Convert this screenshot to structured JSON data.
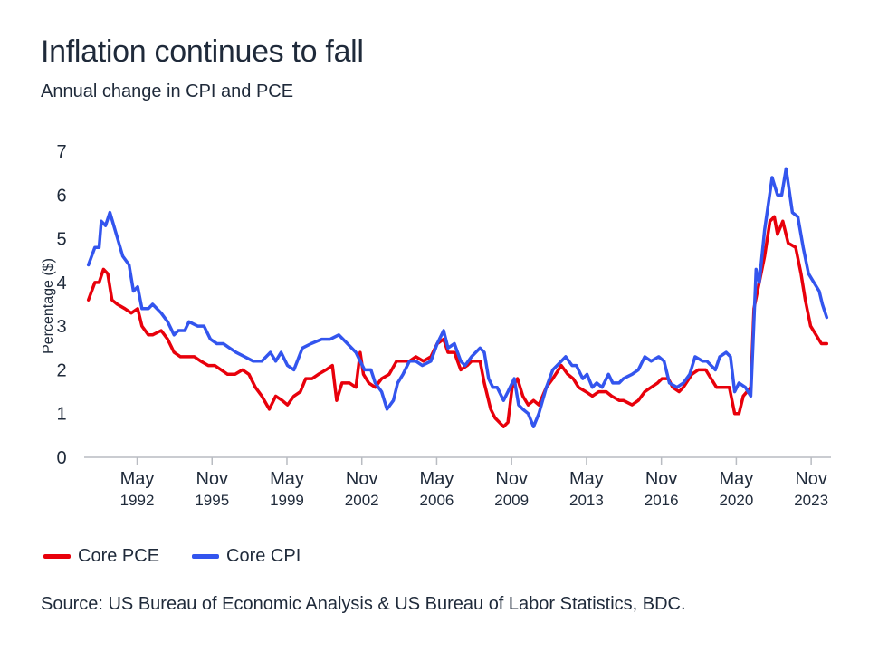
{
  "title": "Inflation continues to fall",
  "subtitle": "Annual change in CPI and PCE",
  "source": "Source: US Bureau of Economic Analysis & US Bureau of Labor Statistics, BDC.",
  "chart_data": {
    "type": "line",
    "title": "Inflation continues to fall",
    "subtitle": "Annual change in CPI and PCE",
    "xlabel": "",
    "ylabel": "Percentage ($)",
    "ylim": [
      0,
      7
    ],
    "xlim": [
      1989.9,
      2024.8
    ],
    "grid": false,
    "legend_position": "bottom-left",
    "yticks": [
      "0",
      "1",
      "2",
      "3",
      "4",
      "5",
      "6",
      "7"
    ],
    "xticks": [
      {
        "x": 1992.375,
        "month": "May",
        "year": "1992"
      },
      {
        "x": 1995.875,
        "month": "Nov",
        "year": "1995"
      },
      {
        "x": 1999.375,
        "month": "May",
        "year": "1999"
      },
      {
        "x": 2002.875,
        "month": "Nov",
        "year": "2002"
      },
      {
        "x": 2006.375,
        "month": "May",
        "year": "2006"
      },
      {
        "x": 2009.875,
        "month": "Nov",
        "year": "2009"
      },
      {
        "x": 2013.375,
        "month": "May",
        "year": "2013"
      },
      {
        "x": 2016.875,
        "month": "Nov",
        "year": "2016"
      },
      {
        "x": 2020.375,
        "month": "May",
        "year": "2020"
      },
      {
        "x": 2023.875,
        "month": "Nov",
        "year": "2023"
      }
    ],
    "series": [
      {
        "name": "Core PCE",
        "color": "#e8000b",
        "points": [
          [
            1990.1,
            3.6
          ],
          [
            1990.4,
            4.0
          ],
          [
            1990.6,
            4.0
          ],
          [
            1990.8,
            4.3
          ],
          [
            1991.0,
            4.2
          ],
          [
            1991.2,
            3.6
          ],
          [
            1991.45,
            3.5
          ],
          [
            1991.8,
            3.4
          ],
          [
            1992.1,
            3.3
          ],
          [
            1992.4,
            3.4
          ],
          [
            1992.6,
            3.0
          ],
          [
            1992.9,
            2.8
          ],
          [
            1993.1,
            2.8
          ],
          [
            1993.5,
            2.9
          ],
          [
            1993.8,
            2.7
          ],
          [
            1994.1,
            2.4
          ],
          [
            1994.4,
            2.3
          ],
          [
            1994.75,
            2.3
          ],
          [
            1995.05,
            2.3
          ],
          [
            1995.35,
            2.2
          ],
          [
            1995.7,
            2.1
          ],
          [
            1996.0,
            2.1
          ],
          [
            1996.3,
            2.0
          ],
          [
            1996.6,
            1.9
          ],
          [
            1996.95,
            1.9
          ],
          [
            1997.3,
            2.0
          ],
          [
            1997.6,
            1.9
          ],
          [
            1997.9,
            1.6
          ],
          [
            1998.2,
            1.4
          ],
          [
            1998.55,
            1.1
          ],
          [
            1998.85,
            1.4
          ],
          [
            1999.15,
            1.3
          ],
          [
            1999.4,
            1.2
          ],
          [
            1999.7,
            1.4
          ],
          [
            2000.0,
            1.5
          ],
          [
            2000.25,
            1.8
          ],
          [
            2000.55,
            1.8
          ],
          [
            2000.85,
            1.9
          ],
          [
            2001.2,
            2.0
          ],
          [
            2001.5,
            2.1
          ],
          [
            2001.7,
            1.3
          ],
          [
            2001.95,
            1.7
          ],
          [
            2002.3,
            1.7
          ],
          [
            2002.6,
            1.6
          ],
          [
            2002.8,
            2.4
          ],
          [
            2002.95,
            1.9
          ],
          [
            2003.2,
            1.7
          ],
          [
            2003.5,
            1.6
          ],
          [
            2003.8,
            1.8
          ],
          [
            2004.15,
            1.9
          ],
          [
            2004.5,
            2.2
          ],
          [
            2004.8,
            2.2
          ],
          [
            2005.1,
            2.2
          ],
          [
            2005.4,
            2.3
          ],
          [
            2005.75,
            2.2
          ],
          [
            2006.1,
            2.3
          ],
          [
            2006.4,
            2.6
          ],
          [
            2006.7,
            2.7
          ],
          [
            2006.9,
            2.4
          ],
          [
            2007.2,
            2.4
          ],
          [
            2007.5,
            2.0
          ],
          [
            2007.8,
            2.1
          ],
          [
            2008.0,
            2.2
          ],
          [
            2008.4,
            2.2
          ],
          [
            2008.6,
            1.7
          ],
          [
            2008.9,
            1.1
          ],
          [
            2009.1,
            0.9
          ],
          [
            2009.5,
            0.7
          ],
          [
            2009.7,
            0.8
          ],
          [
            2009.9,
            1.6
          ],
          [
            2010.15,
            1.8
          ],
          [
            2010.4,
            1.4
          ],
          [
            2010.65,
            1.2
          ],
          [
            2010.9,
            1.3
          ],
          [
            2011.15,
            1.2
          ],
          [
            2011.5,
            1.6
          ],
          [
            2011.8,
            1.8
          ],
          [
            2012.2,
            2.1
          ],
          [
            2012.5,
            1.9
          ],
          [
            2012.75,
            1.8
          ],
          [
            2013.0,
            1.6
          ],
          [
            2013.35,
            1.5
          ],
          [
            2013.65,
            1.4
          ],
          [
            2013.95,
            1.5
          ],
          [
            2014.3,
            1.5
          ],
          [
            2014.55,
            1.4
          ],
          [
            2014.9,
            1.3
          ],
          [
            2015.1,
            1.3
          ],
          [
            2015.5,
            1.2
          ],
          [
            2015.8,
            1.3
          ],
          [
            2016.1,
            1.5
          ],
          [
            2016.4,
            1.6
          ],
          [
            2016.7,
            1.7
          ],
          [
            2016.9,
            1.8
          ],
          [
            2017.2,
            1.8
          ],
          [
            2017.4,
            1.6
          ],
          [
            2017.7,
            1.5
          ],
          [
            2017.9,
            1.6
          ],
          [
            2018.3,
            1.9
          ],
          [
            2018.6,
            2.0
          ],
          [
            2018.95,
            2.0
          ],
          [
            2019.2,
            1.8
          ],
          [
            2019.45,
            1.6
          ],
          [
            2019.8,
            1.6
          ],
          [
            2020.05,
            1.6
          ],
          [
            2020.3,
            1.0
          ],
          [
            2020.5,
            1.0
          ],
          [
            2020.7,
            1.4
          ],
          [
            2021.05,
            1.6
          ],
          [
            2021.2,
            3.4
          ],
          [
            2021.45,
            4.0
          ],
          [
            2021.7,
            4.6
          ],
          [
            2021.95,
            5.4
          ],
          [
            2022.15,
            5.5
          ],
          [
            2022.3,
            5.1
          ],
          [
            2022.55,
            5.4
          ],
          [
            2022.8,
            4.9
          ],
          [
            2023.15,
            4.8
          ],
          [
            2023.4,
            4.2
          ],
          [
            2023.6,
            3.6
          ],
          [
            2023.85,
            3.0
          ],
          [
            2024.1,
            2.8
          ],
          [
            2024.35,
            2.6
          ],
          [
            2024.6,
            2.6
          ]
        ]
      },
      {
        "name": "Core CPI",
        "color": "#3355ee",
        "points": [
          [
            1990.1,
            4.4
          ],
          [
            1990.4,
            4.8
          ],
          [
            1990.6,
            4.8
          ],
          [
            1990.7,
            5.4
          ],
          [
            1990.9,
            5.3
          ],
          [
            1991.1,
            5.6
          ],
          [
            1991.4,
            5.1
          ],
          [
            1991.7,
            4.6
          ],
          [
            1992.0,
            4.4
          ],
          [
            1992.2,
            3.8
          ],
          [
            1992.4,
            3.9
          ],
          [
            1992.6,
            3.4
          ],
          [
            1992.9,
            3.4
          ],
          [
            1993.1,
            3.5
          ],
          [
            1993.5,
            3.3
          ],
          [
            1993.8,
            3.1
          ],
          [
            1994.1,
            2.8
          ],
          [
            1994.3,
            2.9
          ],
          [
            1994.6,
            2.9
          ],
          [
            1994.8,
            3.1
          ],
          [
            1995.2,
            3.0
          ],
          [
            1995.5,
            3.0
          ],
          [
            1995.8,
            2.7
          ],
          [
            1996.1,
            2.6
          ],
          [
            1996.4,
            2.6
          ],
          [
            1996.7,
            2.5
          ],
          [
            1997.0,
            2.4
          ],
          [
            1997.4,
            2.3
          ],
          [
            1997.8,
            2.2
          ],
          [
            1998.2,
            2.2
          ],
          [
            1998.6,
            2.4
          ],
          [
            1998.85,
            2.2
          ],
          [
            1999.1,
            2.4
          ],
          [
            1999.4,
            2.1
          ],
          [
            1999.7,
            2.0
          ],
          [
            2000.1,
            2.5
          ],
          [
            2000.5,
            2.6
          ],
          [
            2001.0,
            2.7
          ],
          [
            2001.4,
            2.7
          ],
          [
            2001.8,
            2.8
          ],
          [
            2002.2,
            2.6
          ],
          [
            2002.6,
            2.4
          ],
          [
            2002.8,
            2.2
          ],
          [
            2003.0,
            2.0
          ],
          [
            2003.3,
            2.0
          ],
          [
            2003.5,
            1.7
          ],
          [
            2003.8,
            1.5
          ],
          [
            2004.05,
            1.1
          ],
          [
            2004.35,
            1.3
          ],
          [
            2004.55,
            1.7
          ],
          [
            2004.8,
            1.9
          ],
          [
            2005.1,
            2.2
          ],
          [
            2005.4,
            2.2
          ],
          [
            2005.7,
            2.1
          ],
          [
            2006.1,
            2.2
          ],
          [
            2006.4,
            2.6
          ],
          [
            2006.7,
            2.9
          ],
          [
            2006.9,
            2.5
          ],
          [
            2007.2,
            2.6
          ],
          [
            2007.5,
            2.2
          ],
          [
            2007.7,
            2.1
          ],
          [
            2008.0,
            2.3
          ],
          [
            2008.4,
            2.5
          ],
          [
            2008.6,
            2.4
          ],
          [
            2008.8,
            1.8
          ],
          [
            2009.0,
            1.6
          ],
          [
            2009.2,
            1.6
          ],
          [
            2009.5,
            1.3
          ],
          [
            2009.7,
            1.5
          ],
          [
            2010.0,
            1.8
          ],
          [
            2010.2,
            1.2
          ],
          [
            2010.4,
            1.1
          ],
          [
            2010.65,
            1.0
          ],
          [
            2010.9,
            0.7
          ],
          [
            2011.15,
            1.0
          ],
          [
            2011.5,
            1.6
          ],
          [
            2011.8,
            2.0
          ],
          [
            2012.2,
            2.2
          ],
          [
            2012.4,
            2.3
          ],
          [
            2012.7,
            2.1
          ],
          [
            2012.9,
            2.1
          ],
          [
            2013.2,
            1.8
          ],
          [
            2013.4,
            1.9
          ],
          [
            2013.65,
            1.6
          ],
          [
            2013.85,
            1.7
          ],
          [
            2014.1,
            1.6
          ],
          [
            2014.4,
            1.9
          ],
          [
            2014.6,
            1.7
          ],
          [
            2014.9,
            1.7
          ],
          [
            2015.1,
            1.8
          ],
          [
            2015.5,
            1.9
          ],
          [
            2015.8,
            2.0
          ],
          [
            2016.1,
            2.3
          ],
          [
            2016.4,
            2.2
          ],
          [
            2016.75,
            2.3
          ],
          [
            2017.0,
            2.2
          ],
          [
            2017.25,
            1.7
          ],
          [
            2017.6,
            1.6
          ],
          [
            2017.9,
            1.7
          ],
          [
            2018.2,
            1.9
          ],
          [
            2018.45,
            2.3
          ],
          [
            2018.8,
            2.2
          ],
          [
            2019.0,
            2.2
          ],
          [
            2019.4,
            2.0
          ],
          [
            2019.6,
            2.3
          ],
          [
            2019.9,
            2.4
          ],
          [
            2020.1,
            2.3
          ],
          [
            2020.3,
            1.5
          ],
          [
            2020.5,
            1.7
          ],
          [
            2020.8,
            1.6
          ],
          [
            2021.05,
            1.4
          ],
          [
            2021.3,
            4.3
          ],
          [
            2021.45,
            4.0
          ],
          [
            2021.7,
            5.2
          ],
          [
            2022.05,
            6.4
          ],
          [
            2022.3,
            6.0
          ],
          [
            2022.5,
            6.0
          ],
          [
            2022.7,
            6.6
          ],
          [
            2023.0,
            5.6
          ],
          [
            2023.25,
            5.5
          ],
          [
            2023.5,
            4.8
          ],
          [
            2023.75,
            4.2
          ],
          [
            2024.0,
            4.0
          ],
          [
            2024.25,
            3.8
          ],
          [
            2024.4,
            3.5
          ],
          [
            2024.6,
            3.2
          ]
        ]
      }
    ]
  }
}
